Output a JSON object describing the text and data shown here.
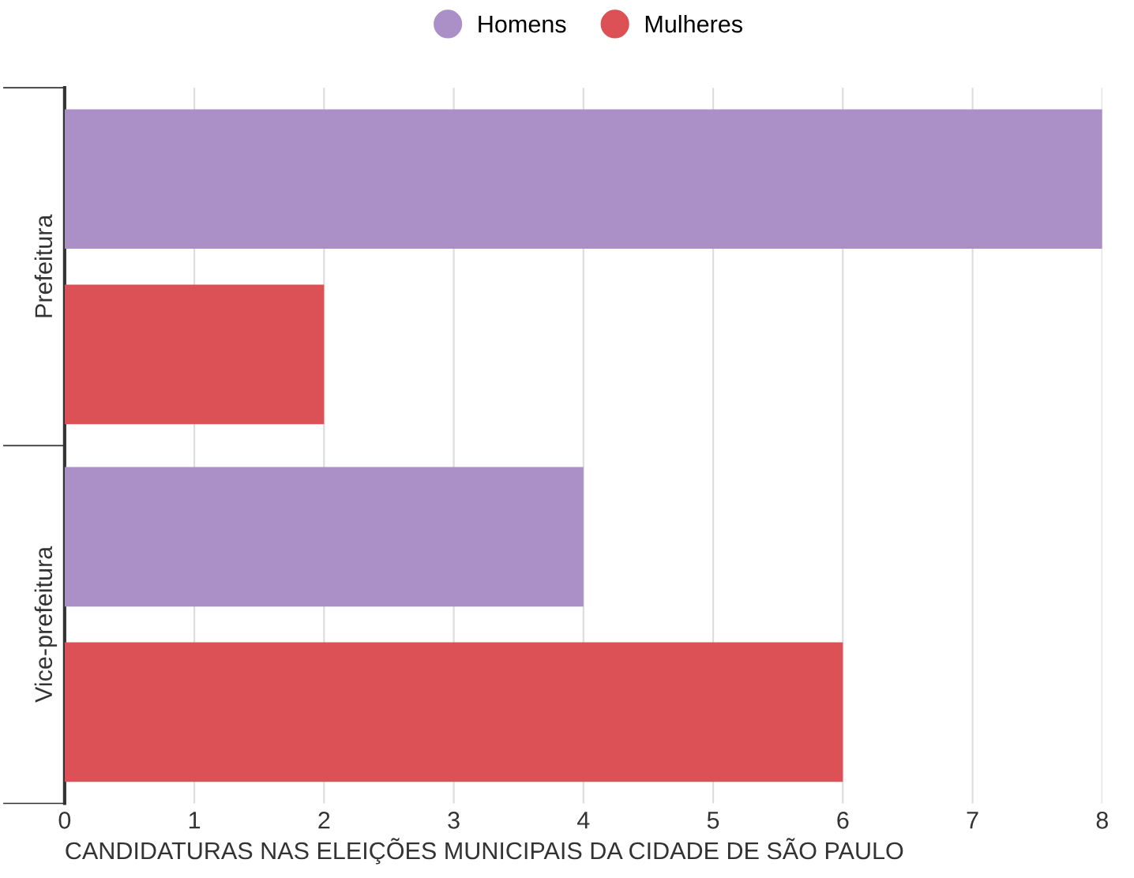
{
  "chart_data": {
    "type": "bar",
    "orientation": "horizontal",
    "categories": [
      "Prefeitura",
      "Vice-prefeitura"
    ],
    "series": [
      {
        "name": "Homens",
        "color": "#ab8fc7",
        "values": [
          8,
          4
        ]
      },
      {
        "name": "Mulheres",
        "color": "#dc5155",
        "values": [
          2,
          6
        ]
      }
    ],
    "xlim": [
      0,
      8
    ],
    "xticks": [
      0,
      1,
      2,
      3,
      4,
      5,
      6,
      7,
      8
    ],
    "xlabel": "CANDIDATURAS NAS ELEIÇÕES MUNICIPAIS DA CIDADE DE SÃO PAULO",
    "grid": "x",
    "legend": "top"
  }
}
